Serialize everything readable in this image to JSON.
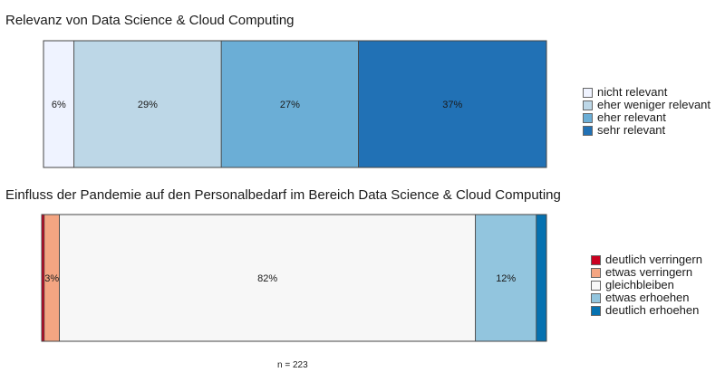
{
  "footnote": "n = 223",
  "chart_data": [
    {
      "type": "bar",
      "orientation": "horizontal-stacked-100",
      "title": "Relevanz von Data Science & Cloud Computing",
      "categories": [
        "nicht relevant",
        "eher weniger relevant",
        "eher relevant",
        "sehr relevant"
      ],
      "values": [
        6,
        29,
        27,
        37
      ],
      "labels": [
        "6%",
        "29%",
        "27%",
        "37%"
      ],
      "colors": [
        "#eff3ff",
        "#bdd7e7",
        "#6baed6",
        "#2171b5"
      ],
      "legend_position": "right"
    },
    {
      "type": "bar",
      "orientation": "horizontal-stacked-100",
      "title": "Einfluss der Pandemie auf den Personalbedarf im Bereich Data Science & Cloud Computing",
      "categories": [
        "deutlich verringern",
        "etwas verringern",
        "gleichbleiben",
        "etwas erhoehen",
        "deutlich erhoehen"
      ],
      "values": [
        0.5,
        3,
        82,
        12,
        2
      ],
      "labels": [
        "",
        "3%",
        "82%",
        "12%",
        ""
      ],
      "colors": [
        "#ca0020",
        "#f4a582",
        "#f7f7f7",
        "#92c5de",
        "#0571b0"
      ],
      "legend_position": "right"
    }
  ]
}
